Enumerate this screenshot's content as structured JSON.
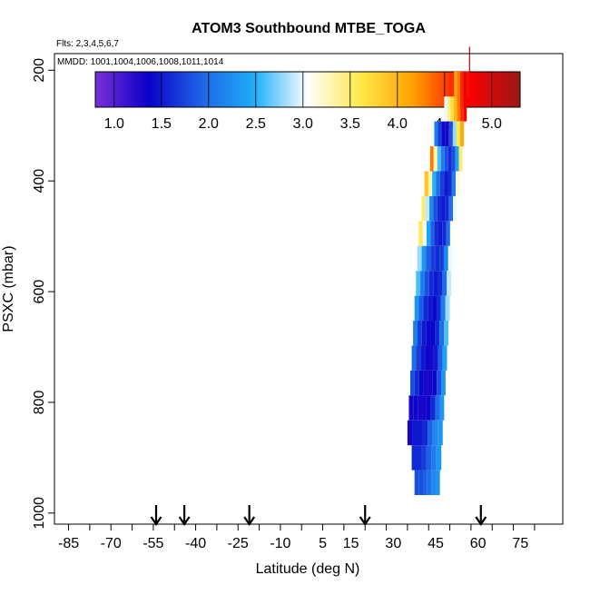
{
  "chart_data": {
    "type": "heatmap",
    "title": "ATOM3 Southbound MTBE_TOGA",
    "subtitle_flights": "Flts: 2,3,4,5,6,7",
    "subtitle_dates": "MMDD: 1001,1004,1006,1008,1011,1014",
    "xlabel": "Latitude (deg N)",
    "ylabel": "PSXC (mbar)",
    "xlim": [
      -90,
      90
    ],
    "ylim": [
      1020,
      170
    ],
    "x_ticks": [
      -85,
      -70,
      -55,
      -40,
      -25,
      -10,
      5,
      15,
      30,
      45,
      60,
      75
    ],
    "x_tick_labels": [
      "-85",
      "-70",
      "-55",
      "-40",
      "-25",
      "-10",
      "5",
      "15",
      "30",
      "45",
      "60",
      "75"
    ],
    "y_ticks": [
      200,
      400,
      600,
      800,
      1000
    ],
    "y_tick_labels": [
      "200",
      "400",
      "600",
      "800",
      "1000"
    ],
    "colorbar": {
      "range": [
        0.8,
        5.3
      ],
      "ticks": [
        1.0,
        1.5,
        2.0,
        2.5,
        3.0,
        3.5,
        4.0,
        4.5,
        5.0
      ],
      "tick_labels": [
        "1.0",
        "1.5",
        "2.0",
        "2.5",
        "3.0",
        "3.5",
        "4.0",
        "4.5",
        "5.0"
      ],
      "colors": [
        "#7B2FD8",
        "#0A00C8",
        "#1E64E6",
        "#1EAEF8",
        "#FFFFFF",
        "#FFE84A",
        "#FFA000",
        "#FF0000",
        "#9A1818"
      ]
    },
    "arrow_latitudes": [
      -54,
      -44,
      -21,
      20,
      61
    ],
    "profile_samples": [
      {
        "p": 180,
        "x0": 56.8,
        "x1": 57.2,
        "values": [
          5.2
        ]
      },
      {
        "p": 225,
        "x0": 51.5,
        "x1": 57.0,
        "values": [
          4.1,
          4.3,
          4.6,
          4.9,
          4.7
        ]
      },
      {
        "p": 270,
        "x0": 48.0,
        "x1": 56.0,
        "values": [
          3.0,
          3.4,
          3.7,
          4.0,
          4.3,
          4.6,
          4.8
        ]
      },
      {
        "p": 315,
        "x0": 44.5,
        "x1": 55.0,
        "values": [
          2.1,
          1.7,
          1.4,
          1.3,
          1.8,
          2.8,
          3.6,
          4.1
        ]
      },
      {
        "p": 360,
        "x0": 43.0,
        "x1": 54.5,
        "values": [
          4.3,
          3.3,
          2.6,
          2.1,
          1.8,
          1.6,
          1.8,
          2.4,
          3.5
        ]
      },
      {
        "p": 405,
        "x0": 41.0,
        "x1": 53.5,
        "values": [
          3.9,
          3.3,
          2.5,
          2.0,
          1.7,
          1.5,
          1.6,
          2.1,
          3.2
        ]
      },
      {
        "p": 450,
        "x0": 40.0,
        "x1": 52.5,
        "values": [
          3.5,
          2.9,
          2.2,
          1.8,
          1.6,
          1.5,
          1.6,
          2.0,
          3.0
        ]
      },
      {
        "p": 495,
        "x0": 39.0,
        "x1": 51.5,
        "values": [
          3.6,
          3.0,
          2.4,
          1.9,
          1.6,
          1.5,
          1.6,
          2.0,
          3.1
        ]
      },
      {
        "p": 540,
        "x0": 38.5,
        "x1": 51.0,
        "values": [
          2.8,
          2.3,
          1.9,
          1.7,
          1.6,
          1.7,
          2.2,
          3.0
        ]
      },
      {
        "p": 585,
        "x0": 38.0,
        "x1": 50.5,
        "values": [
          2.6,
          2.1,
          1.8,
          1.6,
          1.5,
          1.6,
          2.0,
          2.9
        ]
      },
      {
        "p": 630,
        "x0": 37.5,
        "x1": 50.0,
        "values": [
          2.3,
          1.9,
          1.6,
          1.5,
          1.4,
          1.6,
          2.1,
          2.8
        ]
      },
      {
        "p": 675,
        "x0": 37.0,
        "x1": 49.5,
        "values": [
          2.1,
          1.7,
          1.5,
          1.4,
          1.4,
          1.6,
          2.0,
          2.6
        ]
      },
      {
        "p": 720,
        "x0": 36.5,
        "x1": 49.0,
        "values": [
          2.0,
          1.7,
          1.5,
          1.4,
          1.3,
          1.5,
          1.9,
          2.4
        ]
      },
      {
        "p": 765,
        "x0": 36.0,
        "x1": 48.5,
        "values": [
          1.8,
          1.6,
          1.4,
          1.3,
          1.3,
          1.4,
          1.8,
          2.3
        ]
      },
      {
        "p": 810,
        "x0": 35.5,
        "x1": 48.0,
        "values": [
          1.3,
          1.4,
          1.3,
          1.3,
          1.4,
          1.6,
          2.0,
          2.3
        ]
      },
      {
        "p": 855,
        "x0": 35.0,
        "x1": 47.5,
        "values": [
          1.3,
          1.5,
          1.5,
          1.6,
          1.9,
          2.2,
          2.3
        ]
      },
      {
        "p": 900,
        "x0": 36.5,
        "x1": 47.0,
        "values": [
          1.6,
          1.6,
          1.7,
          1.9,
          2.1,
          2.3
        ]
      },
      {
        "p": 945,
        "x0": 37.5,
        "x1": 46.5,
        "values": [
          1.8,
          1.8,
          1.9,
          2.0,
          2.2,
          2.3
        ]
      }
    ]
  }
}
